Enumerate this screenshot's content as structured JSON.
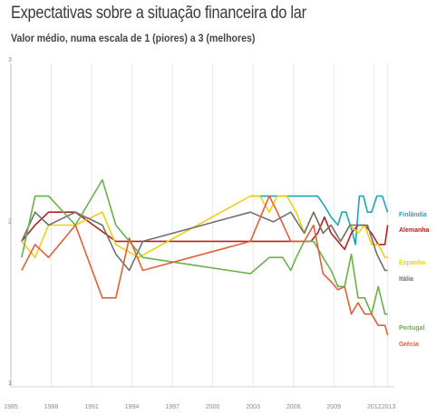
{
  "title": "Expectativas sobre a situação financeira do lar",
  "subtitle": "Valor médio, numa escala de 1 (piores) a 3 (melhores)",
  "chart_data": {
    "type": "line",
    "title": "Expectativas sobre a situação financeira do lar",
    "subtitle": "Valor médio, numa escala de 1 (piores) a 3 (melhores)",
    "xlabel": "",
    "ylabel": "",
    "xlim": [
      1985,
      2013.5
    ],
    "ylim": [
      1,
      3
    ],
    "x_ticks": [
      "1985",
      "1988",
      "1991",
      "1994",
      "1997",
      "2000",
      "2003",
      "2006",
      "2009",
      "2012",
      "2013"
    ],
    "y_ticks": [
      "1",
      "2",
      "3"
    ],
    "grid": "vertical",
    "series": [
      {
        "name": "Finlândia",
        "color": "#1aa6b7",
        "x": [
          2002.8,
          2007.8,
          2008.3,
          2008.8,
          2009.3,
          2009.6,
          2009.9,
          2010.3,
          2010.6,
          2010.9,
          2011.2,
          2011.5,
          2011.8,
          2012.2,
          2012.6,
          2013
        ],
        "y": [
          2.18,
          2.18,
          2.12,
          2.05,
          2.0,
          2.08,
          2.08,
          1.98,
          1.88,
          2.18,
          2.18,
          2.08,
          2.08,
          2.18,
          2.18,
          2.08
        ]
      },
      {
        "name": "Alemanha",
        "color": "#b22222",
        "x": [
          1985.8,
          1986.8,
          1987.8,
          1989.8,
          1992.8,
          2002.8,
          2007.3,
          2007.8,
          2008.3,
          2008.8,
          2009.3,
          2009.8,
          2010.3,
          2010.8,
          2011.3,
          2011.8,
          2012.3,
          2012.8,
          2013
        ],
        "y": [
          1.9,
          2.0,
          2.08,
          2.08,
          1.9,
          1.9,
          1.9,
          1.95,
          2.05,
          1.95,
          1.9,
          1.85,
          1.95,
          2.0,
          2.0,
          1.95,
          1.88,
          1.88,
          2.0
        ]
      },
      {
        "name": "Espanha",
        "color": "#f0d014",
        "x": [
          1985.8,
          1986.8,
          1987.8,
          1989.8,
          1991.8,
          1992.8,
          1994.5,
          2002.8,
          2003.5,
          2004.2,
          2004.8,
          2005.5,
          2006.2,
          2006.8,
          2007.5,
          2008.2,
          2008.8,
          2009.5,
          2010.2,
          2010.8,
          2011.3,
          2011.8,
          2012.3,
          2012.8,
          2013
        ],
        "y": [
          1.9,
          1.8,
          2.0,
          2.0,
          2.08,
          1.88,
          1.8,
          2.18,
          2.18,
          2.08,
          2.18,
          2.18,
          2.08,
          1.95,
          2.08,
          1.95,
          2.0,
          1.9,
          2.0,
          1.95,
          2.0,
          1.88,
          1.88,
          1.8,
          1.8
        ]
      },
      {
        "name": "Itália",
        "color": "#707070",
        "x": [
          1985.8,
          1986.8,
          1987.8,
          1989.8,
          1991.8,
          1992.8,
          1993.8,
          1994.8,
          2002.8,
          2004.5,
          2005.8,
          2006.8,
          2007.5,
          2008.2,
          2008.8,
          2009.5,
          2010.2,
          2010.8,
          2011.5,
          2012.2,
          2012.8,
          2013
        ],
        "y": [
          1.9,
          2.08,
          2.0,
          2.08,
          2.0,
          1.82,
          1.72,
          1.9,
          2.08,
          2.02,
          2.08,
          1.95,
          2.08,
          1.95,
          2.0,
          1.9,
          2.0,
          2.0,
          2.0,
          1.82,
          1.72,
          1.72
        ]
      },
      {
        "name": "Portugal",
        "color": "#6ab04c",
        "x": [
          1985.8,
          1986.8,
          1987.8,
          1989.8,
          1991.8,
          1992.8,
          1994.8,
          2002.8,
          2004.2,
          2005.2,
          2005.8,
          2006.2,
          2006.8,
          2007.5,
          2008.2,
          2008.8,
          2009.3,
          2009.8,
          2010.3,
          2010.8,
          2011.3,
          2011.8,
          2012.3,
          2012.8,
          2013
        ],
        "y": [
          1.8,
          2.18,
          2.18,
          2.0,
          2.28,
          2.0,
          1.8,
          1.7,
          1.8,
          1.8,
          1.72,
          1.8,
          1.9,
          1.9,
          1.8,
          1.72,
          1.62,
          1.62,
          1.82,
          1.55,
          1.55,
          1.45,
          1.62,
          1.45,
          1.45
        ]
      },
      {
        "name": "Grécia",
        "color": "#e0603a",
        "x": [
          1985.8,
          1986.8,
          1987.8,
          1989.8,
          1991.8,
          1992.8,
          1993.8,
          1994.8,
          2002.8,
          2004.2,
          2004.8,
          2005.8,
          2006.8,
          2007.5,
          2008.2,
          2008.8,
          2009.3,
          2009.8,
          2010.3,
          2010.8,
          2011.3,
          2011.8,
          2012.3,
          2012.8,
          2013
        ],
        "y": [
          1.72,
          1.88,
          1.8,
          2.0,
          1.55,
          1.55,
          1.92,
          1.72,
          1.9,
          2.18,
          2.08,
          1.9,
          1.9,
          2.0,
          1.7,
          1.65,
          1.6,
          1.62,
          1.45,
          1.52,
          1.45,
          1.45,
          1.38,
          1.38,
          1.32
        ]
      }
    ]
  }
}
